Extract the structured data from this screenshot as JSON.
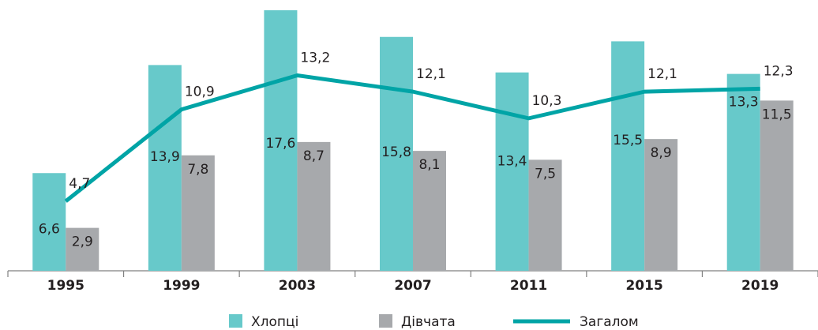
{
  "chart_data": {
    "type": "bar-line",
    "categories": [
      "1995",
      "1999",
      "2003",
      "2007",
      "2011",
      "2015",
      "2019"
    ],
    "series": [
      {
        "name": "Хлопці",
        "color": "#67c9ca",
        "type": "bar",
        "values": [
          6.6,
          13.9,
          17.6,
          15.8,
          13.4,
          15.5,
          13.3
        ],
        "value_labels": [
          "6,6",
          "13,9",
          "17,6",
          "15,8",
          "13,4",
          "15,5",
          "13,3"
        ]
      },
      {
        "name": "Дівчата",
        "color": "#a7a9ac",
        "type": "bar",
        "values": [
          2.9,
          7.8,
          8.7,
          8.1,
          7.5,
          8.9,
          11.5
        ],
        "value_labels": [
          "2,9",
          "7,8",
          "8,7",
          "8,1",
          "7,5",
          "8,9",
          "11,5"
        ]
      },
      {
        "name": "Загалом",
        "color": "#00a4a6",
        "type": "line",
        "values": [
          4.7,
          10.9,
          13.2,
          12.1,
          10.3,
          12.1,
          12.3
        ],
        "value_labels": [
          "4,7",
          "10,9",
          "13,2",
          "12,1",
          "10,3",
          "12,1",
          "12,3"
        ]
      }
    ]
  }
}
